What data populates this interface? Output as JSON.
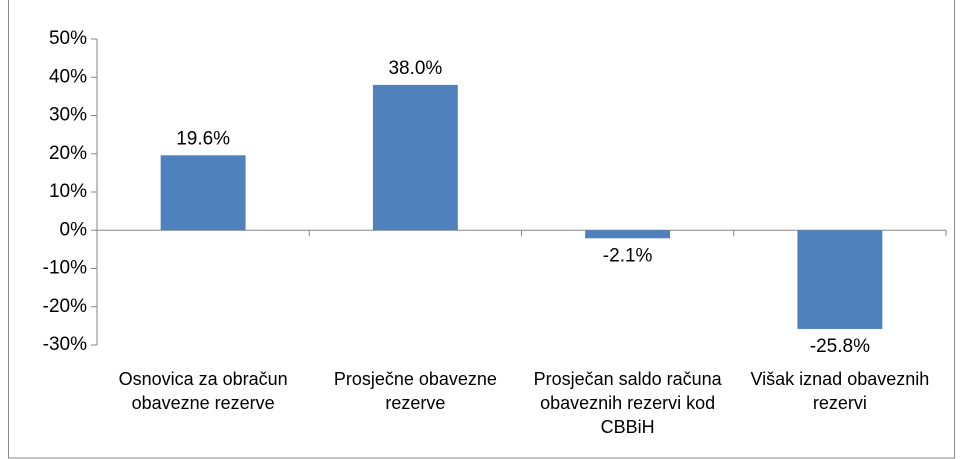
{
  "chart_data": {
    "type": "bar",
    "categories": [
      "Osnovica za obračun obavezne rezerve",
      "Prosječne obavezne rezerve",
      "Prosječan saldo računa obaveznih rezervi kod CBBiH",
      "Višak iznad obaveznih rezervi"
    ],
    "values": [
      19.6,
      38.0,
      -2.1,
      -25.8
    ],
    "value_labels": [
      "19.6%",
      "38.0%",
      "-2.1%",
      "-25.8%"
    ],
    "color": "#4f81bd",
    "ylim": [
      -30,
      50
    ],
    "yticks": [
      {
        "value": 50,
        "label": "50%"
      },
      {
        "value": 40,
        "label": "40%"
      },
      {
        "value": 30,
        "label": "30%"
      },
      {
        "value": 20,
        "label": "20%"
      },
      {
        "value": 10,
        "label": "10%"
      },
      {
        "value": 0,
        "label": "0%"
      },
      {
        "value": -10,
        "label": "-10%"
      },
      {
        "value": -20,
        "label": "-20%"
      },
      {
        "value": -30,
        "label": "-30%"
      }
    ],
    "grid": false
  }
}
